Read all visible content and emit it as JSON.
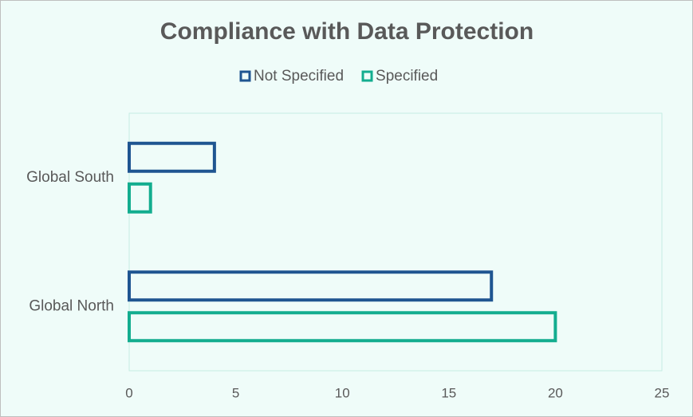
{
  "chart_data": {
    "type": "bar",
    "orientation": "horizontal",
    "title": "Compliance with Data Protection",
    "categories": [
      "Global South",
      "Global North"
    ],
    "series": [
      {
        "name": "Not Specified",
        "color": "#1f5591",
        "values": [
          4,
          17
        ]
      },
      {
        "name": "Specified",
        "color": "#13ad8f",
        "values": [
          1,
          20
        ]
      }
    ],
    "xlim": [
      0,
      25
    ],
    "xticks": [
      0,
      5,
      10,
      15,
      20,
      25
    ],
    "legend": "top"
  }
}
